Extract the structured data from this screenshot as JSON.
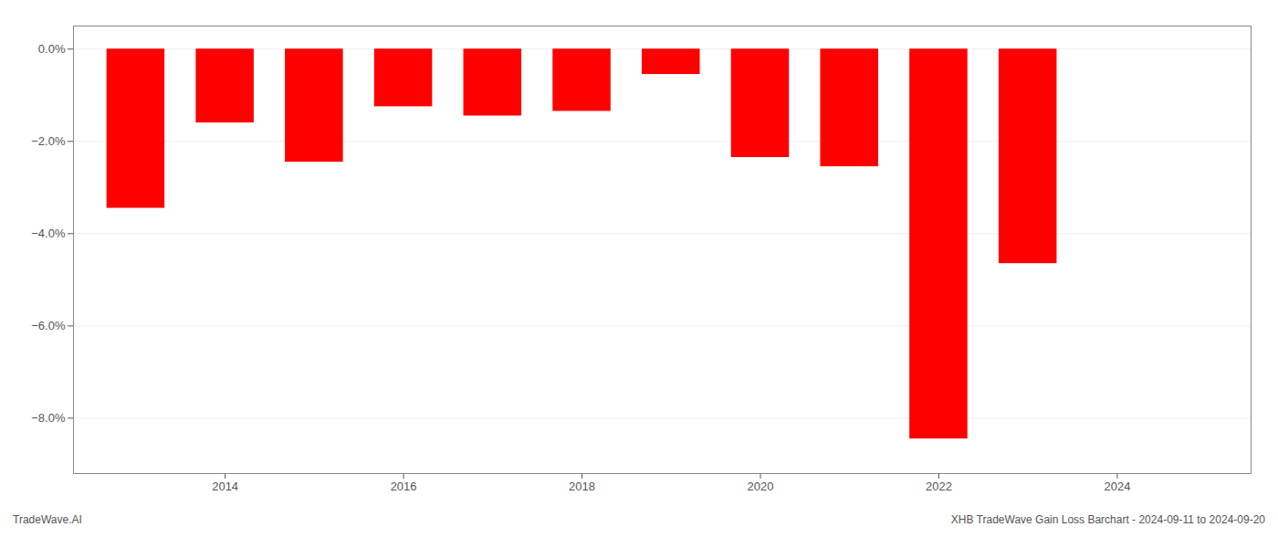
{
  "chart_data": {
    "type": "bar",
    "x": [
      2013,
      2014,
      2015,
      2016,
      2017,
      2018,
      2019,
      2020,
      2021,
      2022,
      2023
    ],
    "values": [
      -3.45,
      -1.6,
      -2.45,
      -1.25,
      -1.45,
      -1.35,
      -0.55,
      -2.35,
      -2.55,
      -8.45,
      -4.65
    ],
    "color": "#ff0000",
    "xlim": [
      2012.3,
      2025.5
    ],
    "xticks": [
      2014,
      2016,
      2018,
      2020,
      2022,
      2024
    ],
    "ylim": [
      -9.2,
      0.5
    ],
    "yticks": [
      {
        "value": 0.0,
        "label": "0.0%"
      },
      {
        "value": -2.0,
        "label": "−2.0%"
      },
      {
        "value": -4.0,
        "label": "−4.0%"
      },
      {
        "value": -6.0,
        "label": "−6.0%"
      },
      {
        "value": -8.0,
        "label": "−8.0%"
      }
    ],
    "grid": true,
    "annotations": [
      "TradeWave.AI",
      "XHB TradeWave Gain Loss Barchart - 2024-09-11 to 2024-09-20"
    ]
  }
}
